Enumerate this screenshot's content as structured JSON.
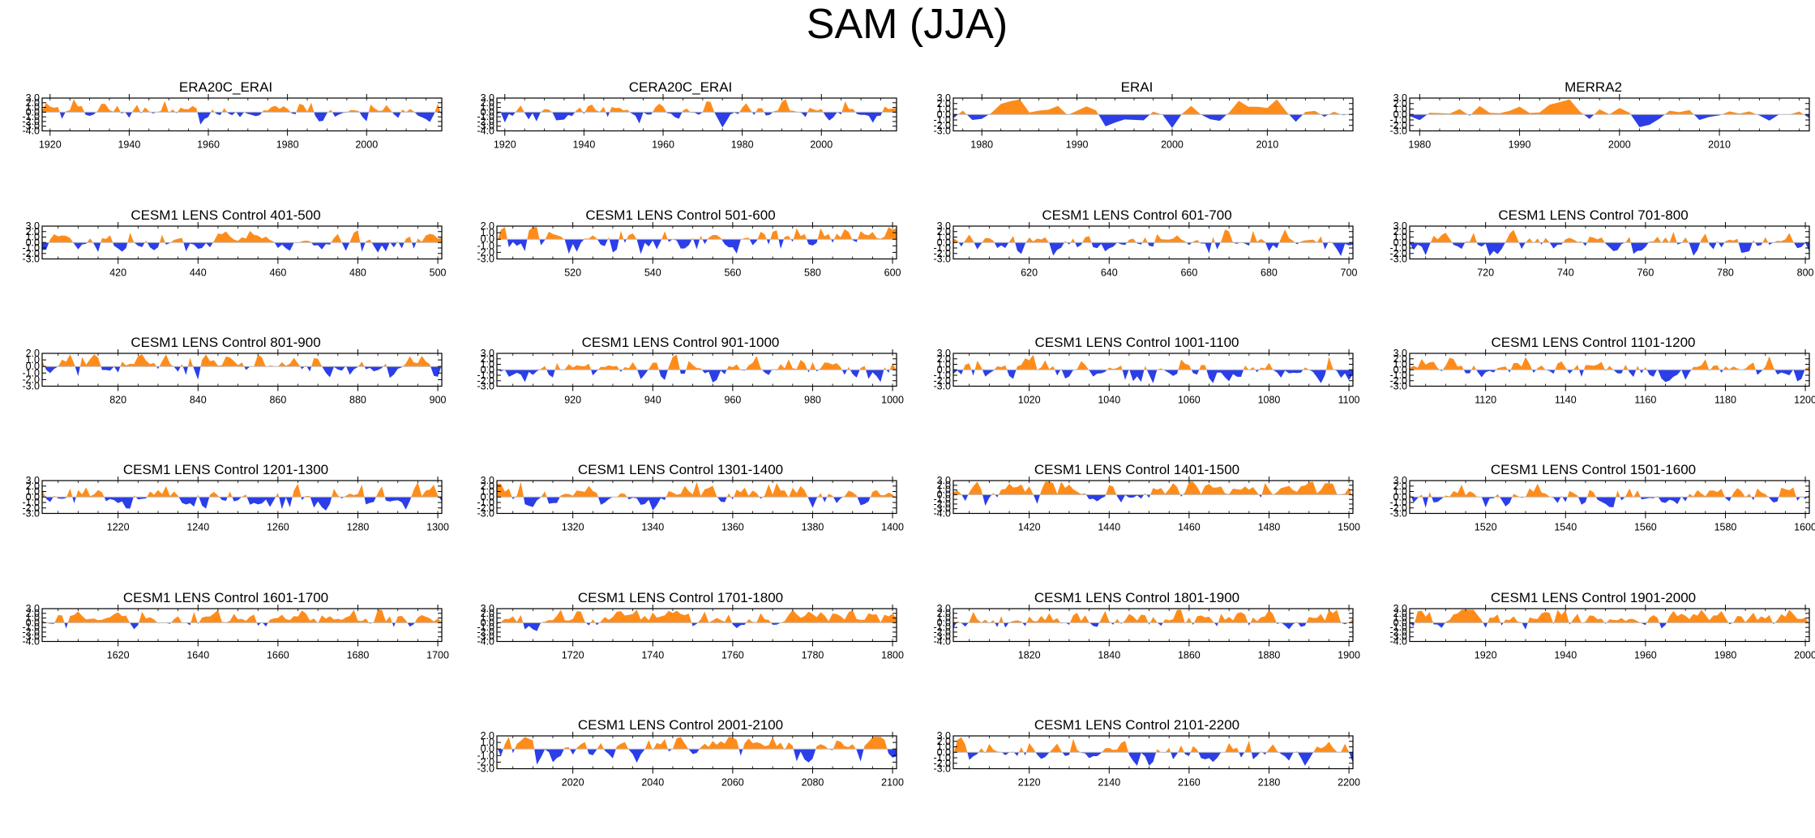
{
  "page": {
    "title": "SAM (JJA)",
    "colors": {
      "positive": "#ff8c1a",
      "negative": "#2b3ee8",
      "frame": "#000000",
      "zero_line": "#bbbbbb"
    }
  },
  "chart_data": [
    {
      "type": "area",
      "title": "ERA20C_ERAI",
      "x_range": [
        1918,
        2019
      ],
      "ylim": [
        -4.0,
        3.0
      ],
      "yticks": [
        "3.0",
        "2.0",
        "1.0",
        "0.0",
        "-1.0",
        "-2.0",
        "-3.0",
        "-4.0"
      ],
      "xticks": [
        1920,
        1940,
        1960,
        1980,
        2000
      ],
      "seed": 11,
      "pos_bias": 0.0
    },
    {
      "type": "area",
      "title": "CERA20C_ERAI",
      "x_range": [
        1918,
        2019
      ],
      "ylim": [
        -4.0,
        3.0
      ],
      "yticks": [
        "3.0",
        "2.0",
        "1.0",
        "0.0",
        "-1.0",
        "-2.0",
        "-3.0",
        "-4.0"
      ],
      "xticks": [
        1920,
        1940,
        1960,
        1980,
        2000
      ],
      "seed": 23,
      "pos_bias": 0.0
    },
    {
      "type": "area",
      "title": "ERAI",
      "x_range": [
        1977,
        2019
      ],
      "ylim": [
        -3.0,
        3.0
      ],
      "yticks": [
        "3.0",
        "2.0",
        "1.0",
        "0.0",
        "-1.0",
        "-2.0",
        "-3.0"
      ],
      "xticks": [
        1980,
        1990,
        2000,
        2010
      ],
      "seed": 37,
      "pos_bias": 0.0
    },
    {
      "type": "area",
      "title": "MERRA2",
      "x_range": [
        1979,
        2019
      ],
      "ylim": [
        -3.0,
        3.0
      ],
      "yticks": [
        "3.0",
        "2.0",
        "1.0",
        "0.0",
        "-1.0",
        "-2.0",
        "-3.0"
      ],
      "xticks": [
        1980,
        1990,
        2000,
        2010
      ],
      "seed": 41,
      "pos_bias": 0.0
    },
    {
      "type": "area",
      "title": "CESM1 LENS Control 401-500",
      "x_range": [
        401,
        501
      ],
      "ylim": [
        -3.0,
        3.0
      ],
      "yticks": [
        "3.0",
        "2.0",
        "1.0",
        "0.0",
        "-1.0",
        "-2.0",
        "-3.0"
      ],
      "xticks": [
        420,
        440,
        460,
        480,
        500
      ],
      "seed": 101,
      "pos_bias": 0.0
    },
    {
      "type": "area",
      "title": "CESM1 LENS Control 501-600",
      "x_range": [
        501,
        601
      ],
      "ylim": [
        -3.0,
        2.0
      ],
      "yticks": [
        "2.0",
        "1.0",
        "0.0",
        "-1.0",
        "-2.0",
        "-3.0"
      ],
      "xticks": [
        520,
        540,
        560,
        580,
        600
      ],
      "seed": 102,
      "pos_bias": 0.0
    },
    {
      "type": "area",
      "title": "CESM1 LENS Control 601-700",
      "x_range": [
        601,
        701
      ],
      "ylim": [
        -3.0,
        3.0
      ],
      "yticks": [
        "3.0",
        "2.0",
        "1.0",
        "0.0",
        "-1.0",
        "-2.0",
        "-3.0"
      ],
      "xticks": [
        620,
        640,
        660,
        680,
        700
      ],
      "seed": 103,
      "pos_bias": 0.0
    },
    {
      "type": "area",
      "title": "CESM1 LENS Control 701-800",
      "x_range": [
        701,
        801
      ],
      "ylim": [
        -3.0,
        3.0
      ],
      "yticks": [
        "3.0",
        "2.0",
        "1.0",
        "0.0",
        "-1.0",
        "-2.0",
        "-3.0"
      ],
      "xticks": [
        720,
        740,
        760,
        780,
        800
      ],
      "seed": 104,
      "pos_bias": 0.0
    },
    {
      "type": "area",
      "title": "CESM1 LENS Control 801-900",
      "x_range": [
        801,
        901
      ],
      "ylim": [
        -3.0,
        2.0
      ],
      "yticks": [
        "2.0",
        "1.0",
        "0.0",
        "-1.0",
        "-2.0",
        "-3.0"
      ],
      "xticks": [
        820,
        840,
        860,
        880,
        900
      ],
      "seed": 105,
      "pos_bias": 0.0
    },
    {
      "type": "area",
      "title": "CESM1 LENS Control 901-1000",
      "x_range": [
        901,
        1001
      ],
      "ylim": [
        -3.0,
        3.0
      ],
      "yticks": [
        "3.0",
        "2.0",
        "1.0",
        "0.0",
        "-1.0",
        "-2.0",
        "-3.0"
      ],
      "xticks": [
        920,
        940,
        960,
        980,
        1000
      ],
      "seed": 106,
      "pos_bias": 0.0
    },
    {
      "type": "area",
      "title": "CESM1 LENS Control 1001-1100",
      "x_range": [
        1001,
        1101
      ],
      "ylim": [
        -3.0,
        3.0
      ],
      "yticks": [
        "3.0",
        "2.0",
        "1.0",
        "0.0",
        "-1.0",
        "-2.0",
        "-3.0"
      ],
      "xticks": [
        1020,
        1040,
        1060,
        1080,
        1100
      ],
      "seed": 107,
      "pos_bias": 0.0
    },
    {
      "type": "area",
      "title": "CESM1 LENS Control 1101-1200",
      "x_range": [
        1101,
        1201
      ],
      "ylim": [
        -3.0,
        3.0
      ],
      "yticks": [
        "3.0",
        "2.0",
        "1.0",
        "0.0",
        "-1.0",
        "-2.0",
        "-3.0"
      ],
      "xticks": [
        1120,
        1140,
        1160,
        1180,
        1200
      ],
      "seed": 108,
      "pos_bias": 0.0
    },
    {
      "type": "area",
      "title": "CESM1 LENS Control 1201-1300",
      "x_range": [
        1201,
        1301
      ],
      "ylim": [
        -3.0,
        3.0
      ],
      "yticks": [
        "3.0",
        "2.0",
        "1.0",
        "0.0",
        "-1.0",
        "-2.0",
        "-3.0"
      ],
      "xticks": [
        1220,
        1240,
        1260,
        1280,
        1300
      ],
      "seed": 109,
      "pos_bias": 0.0
    },
    {
      "type": "area",
      "title": "CESM1 LENS Control 1301-1400",
      "x_range": [
        1301,
        1401
      ],
      "ylim": [
        -3.0,
        3.0
      ],
      "yticks": [
        "3.0",
        "2.0",
        "1.0",
        "0.0",
        "-1.0",
        "-2.0",
        "-3.0"
      ],
      "xticks": [
        1320,
        1340,
        1360,
        1380,
        1400
      ],
      "seed": 110,
      "pos_bias": 0.0
    },
    {
      "type": "area",
      "title": "CESM1 LENS Control 1401-1500",
      "x_range": [
        1401,
        1501
      ],
      "ylim": [
        -4.0,
        3.0
      ],
      "yticks": [
        "3.0",
        "2.0",
        "1.0",
        "0.0",
        "-1.0",
        "-2.0",
        "-3.0",
        "-4.0"
      ],
      "xticks": [
        1420,
        1440,
        1460,
        1480,
        1500
      ],
      "seed": 111,
      "pos_bias": 0.6
    },
    {
      "type": "area",
      "title": "CESM1 LENS Control 1501-1600",
      "x_range": [
        1501,
        1601
      ],
      "ylim": [
        -3.0,
        3.0
      ],
      "yticks": [
        "3.0",
        "2.0",
        "1.0",
        "0.0",
        "-1.0",
        "-2.0",
        "-3.0"
      ],
      "xticks": [
        1520,
        1540,
        1560,
        1580,
        1600
      ],
      "seed": 112,
      "pos_bias": 0.0
    },
    {
      "type": "area",
      "title": "CESM1 LENS Control 1601-1700",
      "x_range": [
        1601,
        1701
      ],
      "ylim": [
        -4.0,
        3.0
      ],
      "yticks": [
        "3.0",
        "2.0",
        "1.0",
        "0.0",
        "-1.0",
        "-2.0",
        "-3.0",
        "-4.0"
      ],
      "xticks": [
        1620,
        1640,
        1660,
        1680,
        1700
      ],
      "seed": 113,
      "pos_bias": 0.6
    },
    {
      "type": "area",
      "title": "CESM1 LENS Control 1701-1800",
      "x_range": [
        1701,
        1801
      ],
      "ylim": [
        -4.0,
        3.0
      ],
      "yticks": [
        "3.0",
        "2.0",
        "1.0",
        "0.0",
        "-1.0",
        "-2.0",
        "-3.0",
        "-4.0"
      ],
      "xticks": [
        1720,
        1740,
        1760,
        1780,
        1800
      ],
      "seed": 114,
      "pos_bias": 0.6
    },
    {
      "type": "area",
      "title": "CESM1 LENS Control 1801-1900",
      "x_range": [
        1801,
        1901
      ],
      "ylim": [
        -4.0,
        3.0
      ],
      "yticks": [
        "3.0",
        "2.0",
        "1.0",
        "0.0",
        "-1.0",
        "-2.0",
        "-3.0",
        "-4.0"
      ],
      "xticks": [
        1820,
        1840,
        1860,
        1880,
        1900
      ],
      "seed": 115,
      "pos_bias": 0.6
    },
    {
      "type": "area",
      "title": "CESM1 LENS Control 1901-2000",
      "x_range": [
        1901,
        2001
      ],
      "ylim": [
        -4.0,
        3.0
      ],
      "yticks": [
        "3.0",
        "2.0",
        "1.0",
        "0.0",
        "-1.0",
        "-2.0",
        "-3.0",
        "-4.0"
      ],
      "xticks": [
        1920,
        1940,
        1960,
        1980,
        2000
      ],
      "seed": 116,
      "pos_bias": 0.6
    },
    {
      "type": "area",
      "title": "CESM1 LENS Control 2001-2100",
      "x_range": [
        2001,
        2101
      ],
      "ylim": [
        -3.0,
        2.0
      ],
      "yticks": [
        "2.0",
        "1.0",
        "0.0",
        "-1.0",
        "-2.0",
        "-3.0"
      ],
      "xticks": [
        2020,
        2040,
        2060,
        2080,
        2100
      ],
      "seed": 117,
      "pos_bias": 0.0
    },
    {
      "type": "area",
      "title": "CESM1 LENS Control 2101-2200",
      "x_range": [
        2101,
        2201
      ],
      "ylim": [
        -3.0,
        3.0
      ],
      "yticks": [
        "3.0",
        "2.0",
        "1.0",
        "0.0",
        "-1.0",
        "-2.0",
        "-3.0"
      ],
      "xticks": [
        2120,
        2140,
        2160,
        2180,
        2200
      ],
      "seed": 118,
      "pos_bias": 0.0
    }
  ]
}
